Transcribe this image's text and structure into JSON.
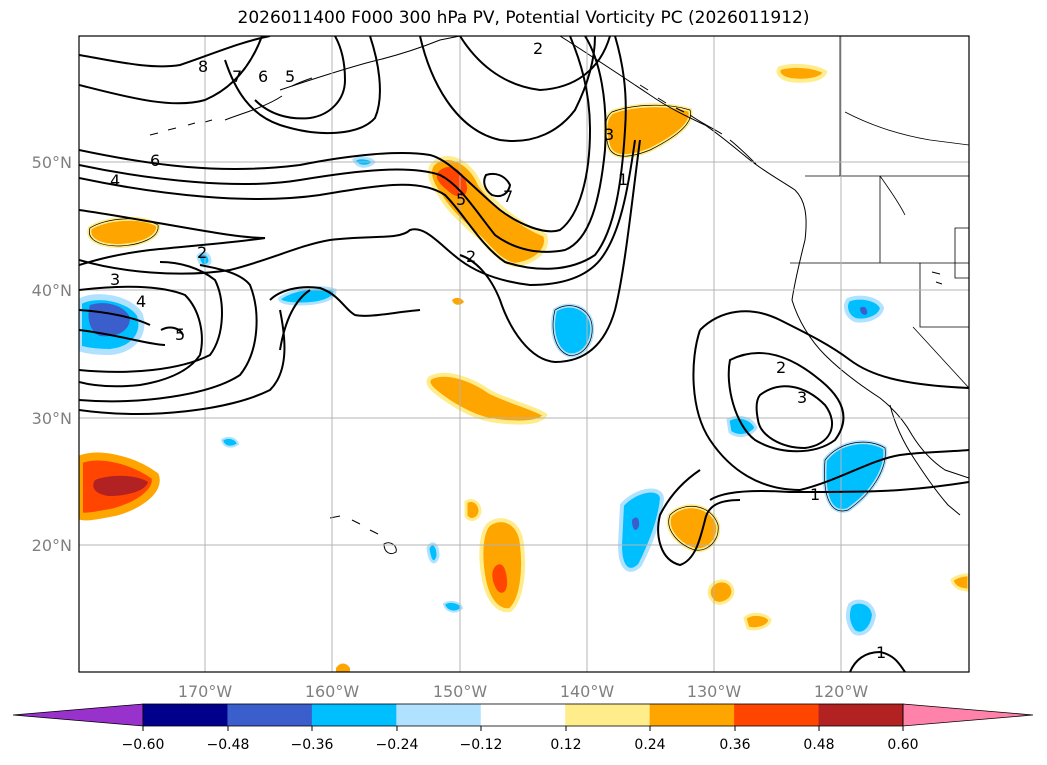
{
  "title": "2026011400 F000 300 hPa PV, Potential Vorticity PC (2026011912)",
  "map": {
    "lon_ticks": [
      "170°W",
      "160°W",
      "150°W",
      "140°W",
      "130°W",
      "120°W"
    ],
    "lat_ticks": [
      "50°N",
      "40°N",
      "30°N",
      "20°N"
    ],
    "contour_labels": [
      "8",
      "7",
      "6",
      "5",
      "2",
      "3",
      "1",
      "6",
      "4",
      "5",
      "7",
      "2",
      "2",
      "3",
      "4",
      "5",
      "2",
      "3",
      "1",
      "1"
    ]
  },
  "colorbar": {
    "ticks": [
      "−0.60",
      "−0.48",
      "−0.36",
      "−0.24",
      "−0.12",
      "0.12",
      "0.24",
      "0.36",
      "0.48",
      "0.60"
    ],
    "colors": [
      "#9932cc",
      "#00008b",
      "#3a5fcd",
      "#00bfff",
      "#b0e2ff",
      "#ffffff",
      "#ffec8b",
      "#ffa500",
      "#ff4500",
      "#b22222",
      "#ff82ab",
      "#ff82ab"
    ]
  },
  "colors": {
    "frame": "#000000",
    "grid": "#b4b4b4",
    "tick_label": "#808080"
  }
}
